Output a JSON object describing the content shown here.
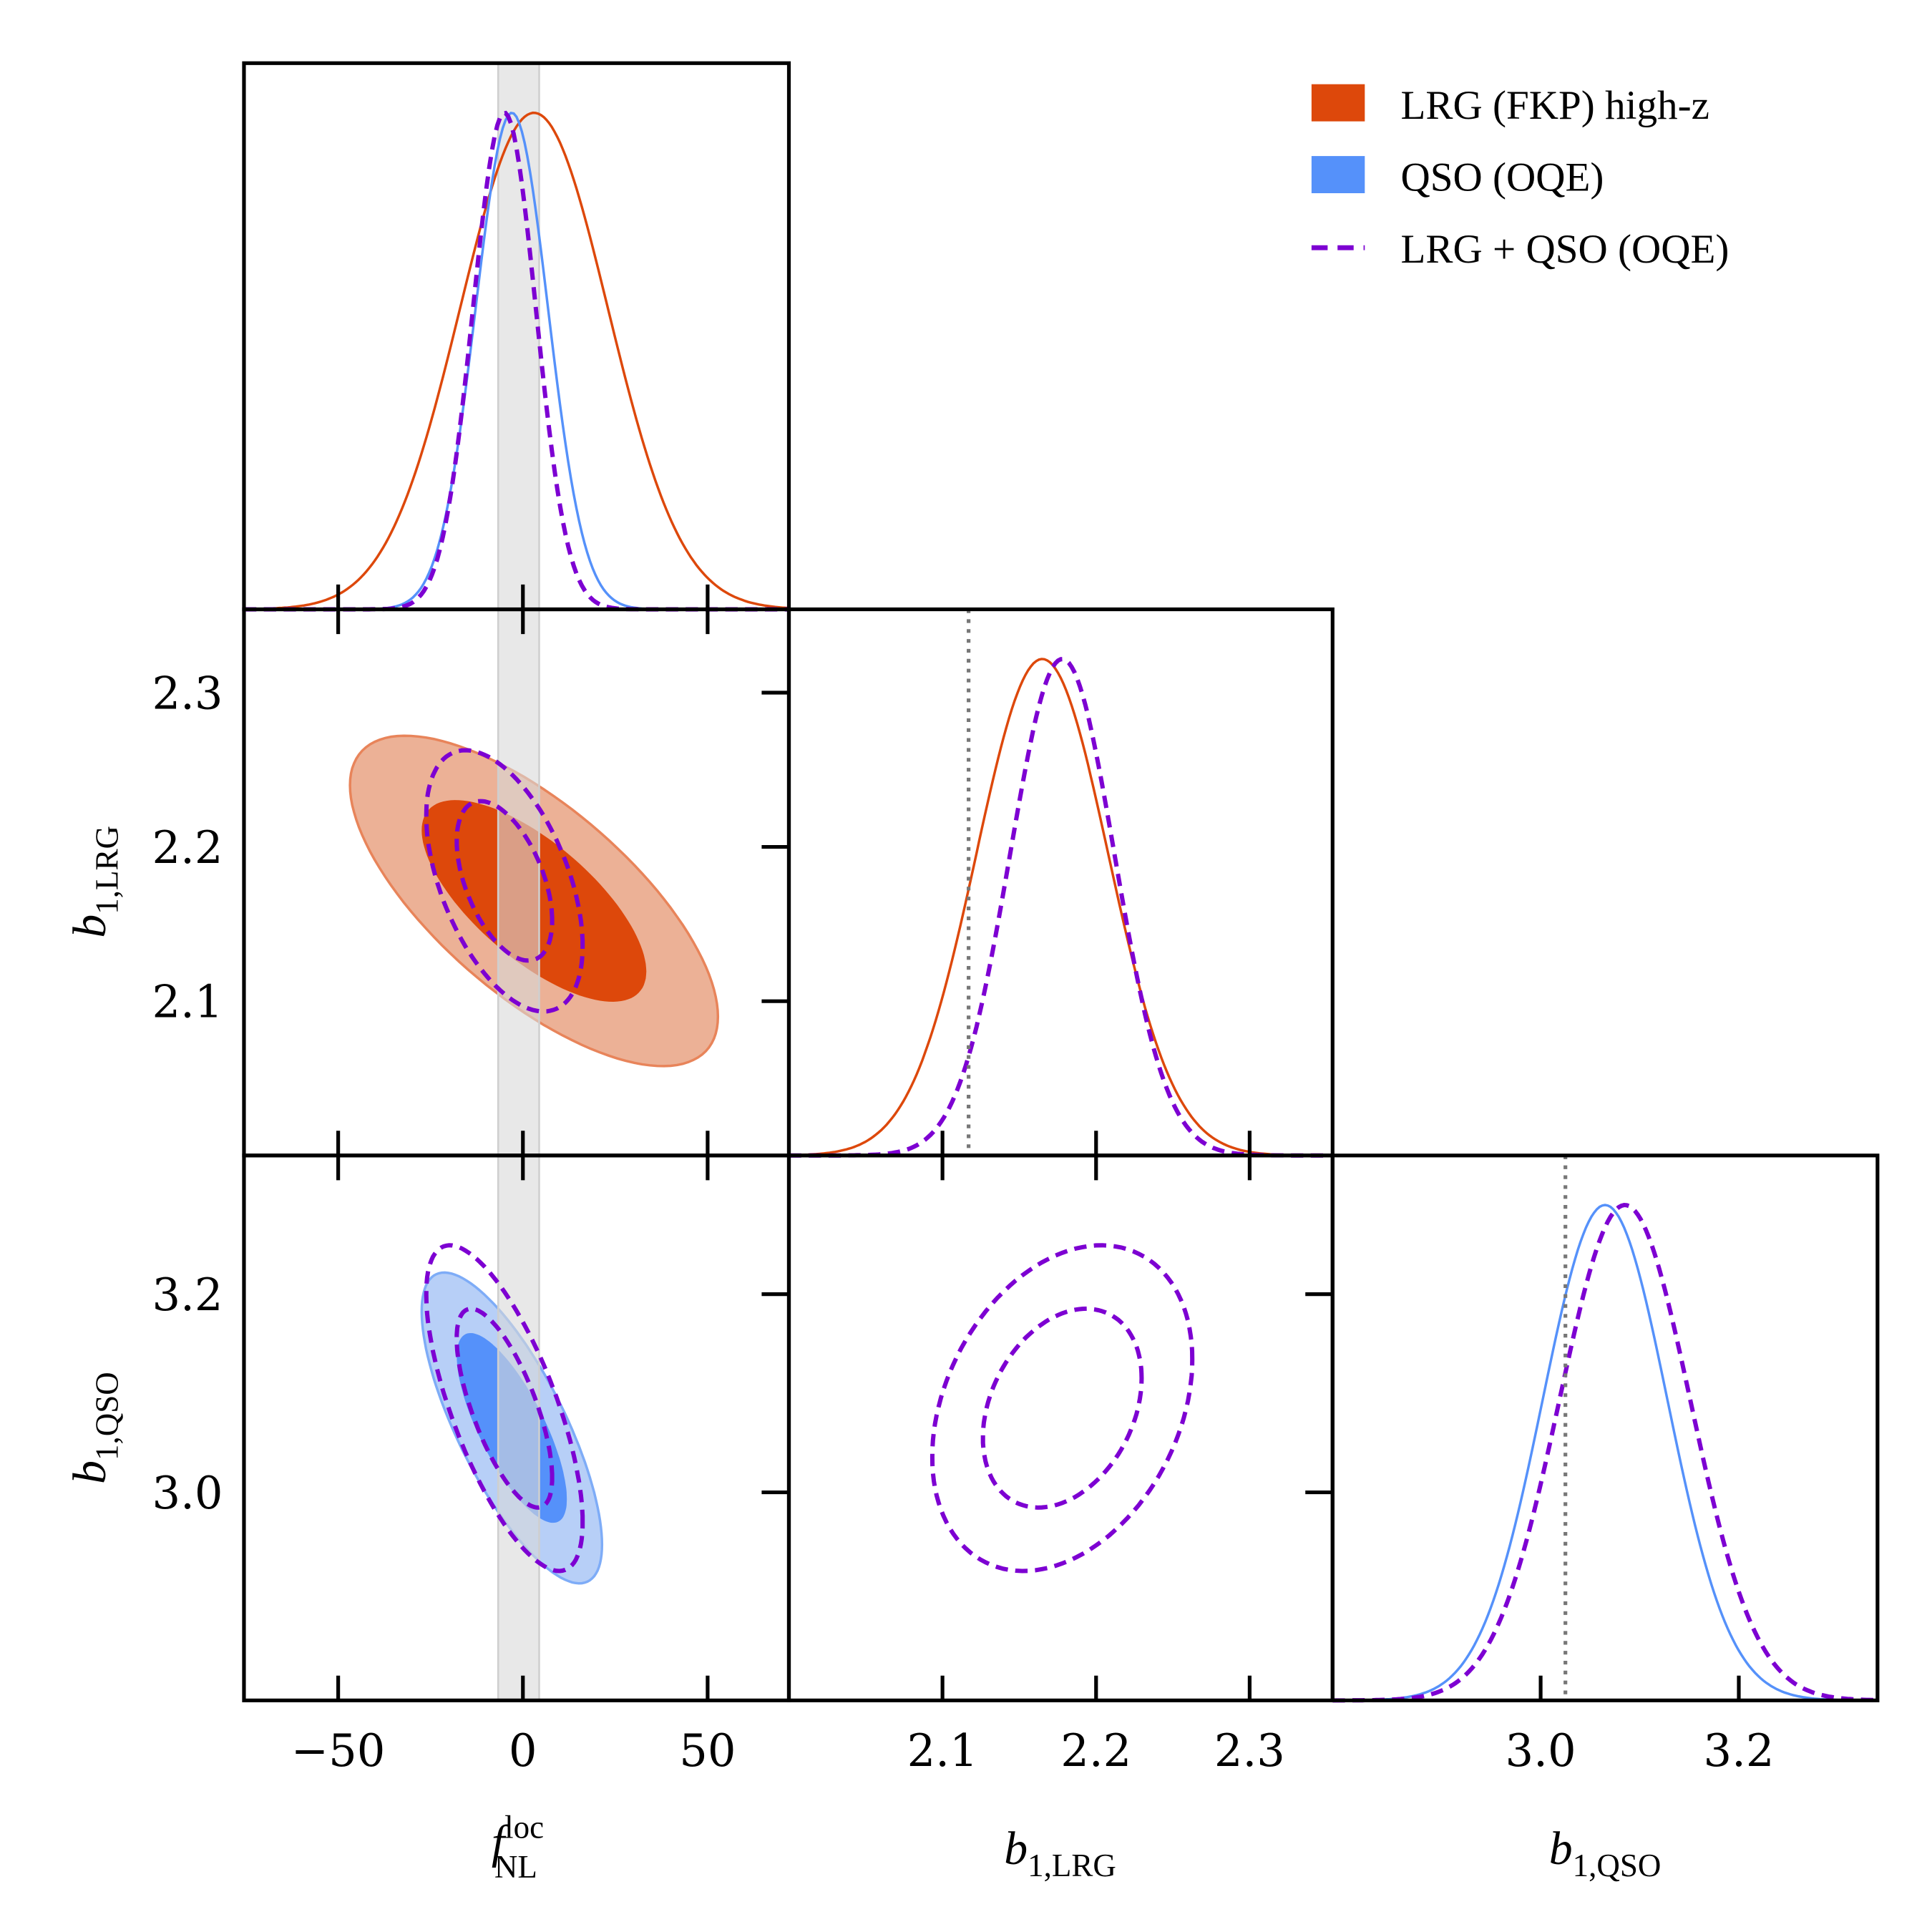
{
  "chart_data": {
    "type": "triangle",
    "parameters": [
      {
        "key": "fnl",
        "label_main": "f",
        "label_sub": "NL",
        "label_sup": "loc",
        "range": [
          -75.5,
          72
        ],
        "ticks": [
          -50,
          0,
          50
        ],
        "tick_labels": [
          "−50",
          "0",
          "50"
        ]
      },
      {
        "key": "blrg",
        "label_main": "b",
        "label_sub": "1,LRG",
        "range": [
          2.0,
          2.354
        ],
        "ticks": [
          2.1,
          2.2,
          2.3
        ],
        "tick_labels": [
          "2.1",
          "2.2",
          "2.3"
        ]
      },
      {
        "key": "bqso",
        "label_main": "b",
        "label_sub": "1,QSO",
        "range": [
          2.79,
          3.34
        ],
        "ticks": [
          3.0,
          3.2
        ],
        "tick_labels": [
          "3.0",
          "3.2"
        ]
      }
    ],
    "series": [
      {
        "name": "LRG (FKP) high-z",
        "color": "#dd480b",
        "light_color": "#ecb196",
        "edge_color": "#e8845a",
        "style": "filled",
        "mean": {
          "fnl": 3,
          "blrg": 2.165
        },
        "sigma": {
          "fnl": 20,
          "blrg": 0.043
        },
        "correlation": {
          "fnl-blrg": -0.7
        }
      },
      {
        "name": "QSO (OQE)",
        "color": "#5591fa",
        "light_color": "#b7cff7",
        "edge_color": "#7eacf7",
        "style": "filled",
        "mean": {
          "fnl": -3,
          "bqso": 3.065
        },
        "sigma": {
          "fnl": 9.8,
          "bqso": 0.063
        },
        "correlation": {
          "fnl-bqso": -0.75
        }
      },
      {
        "name": "LRG + QSO (OQE)",
        "color": "#7d00d2",
        "style": "dashed",
        "mean": {
          "fnl": -5,
          "blrg": 2.178,
          "bqso": 3.085
        },
        "sigma": {
          "fnl": 8.5,
          "blrg": 0.034,
          "bqso": 0.066
        },
        "correlation": {
          "fnl-blrg": -0.5,
          "fnl-bqso": -0.7,
          "blrg-bqso": 0.3
        }
      }
    ],
    "contour_levels": [
      "68%",
      "95%"
    ],
    "reference_band": {
      "param": "fnl",
      "range": [
        -6.7,
        4.4
      ],
      "color": "#d9d9d9"
    },
    "reference_lines": [
      {
        "param": "blrg",
        "value": 2.117
      },
      {
        "param": "bqso",
        "value": 3.025
      }
    ],
    "legend_position": "top-right"
  }
}
